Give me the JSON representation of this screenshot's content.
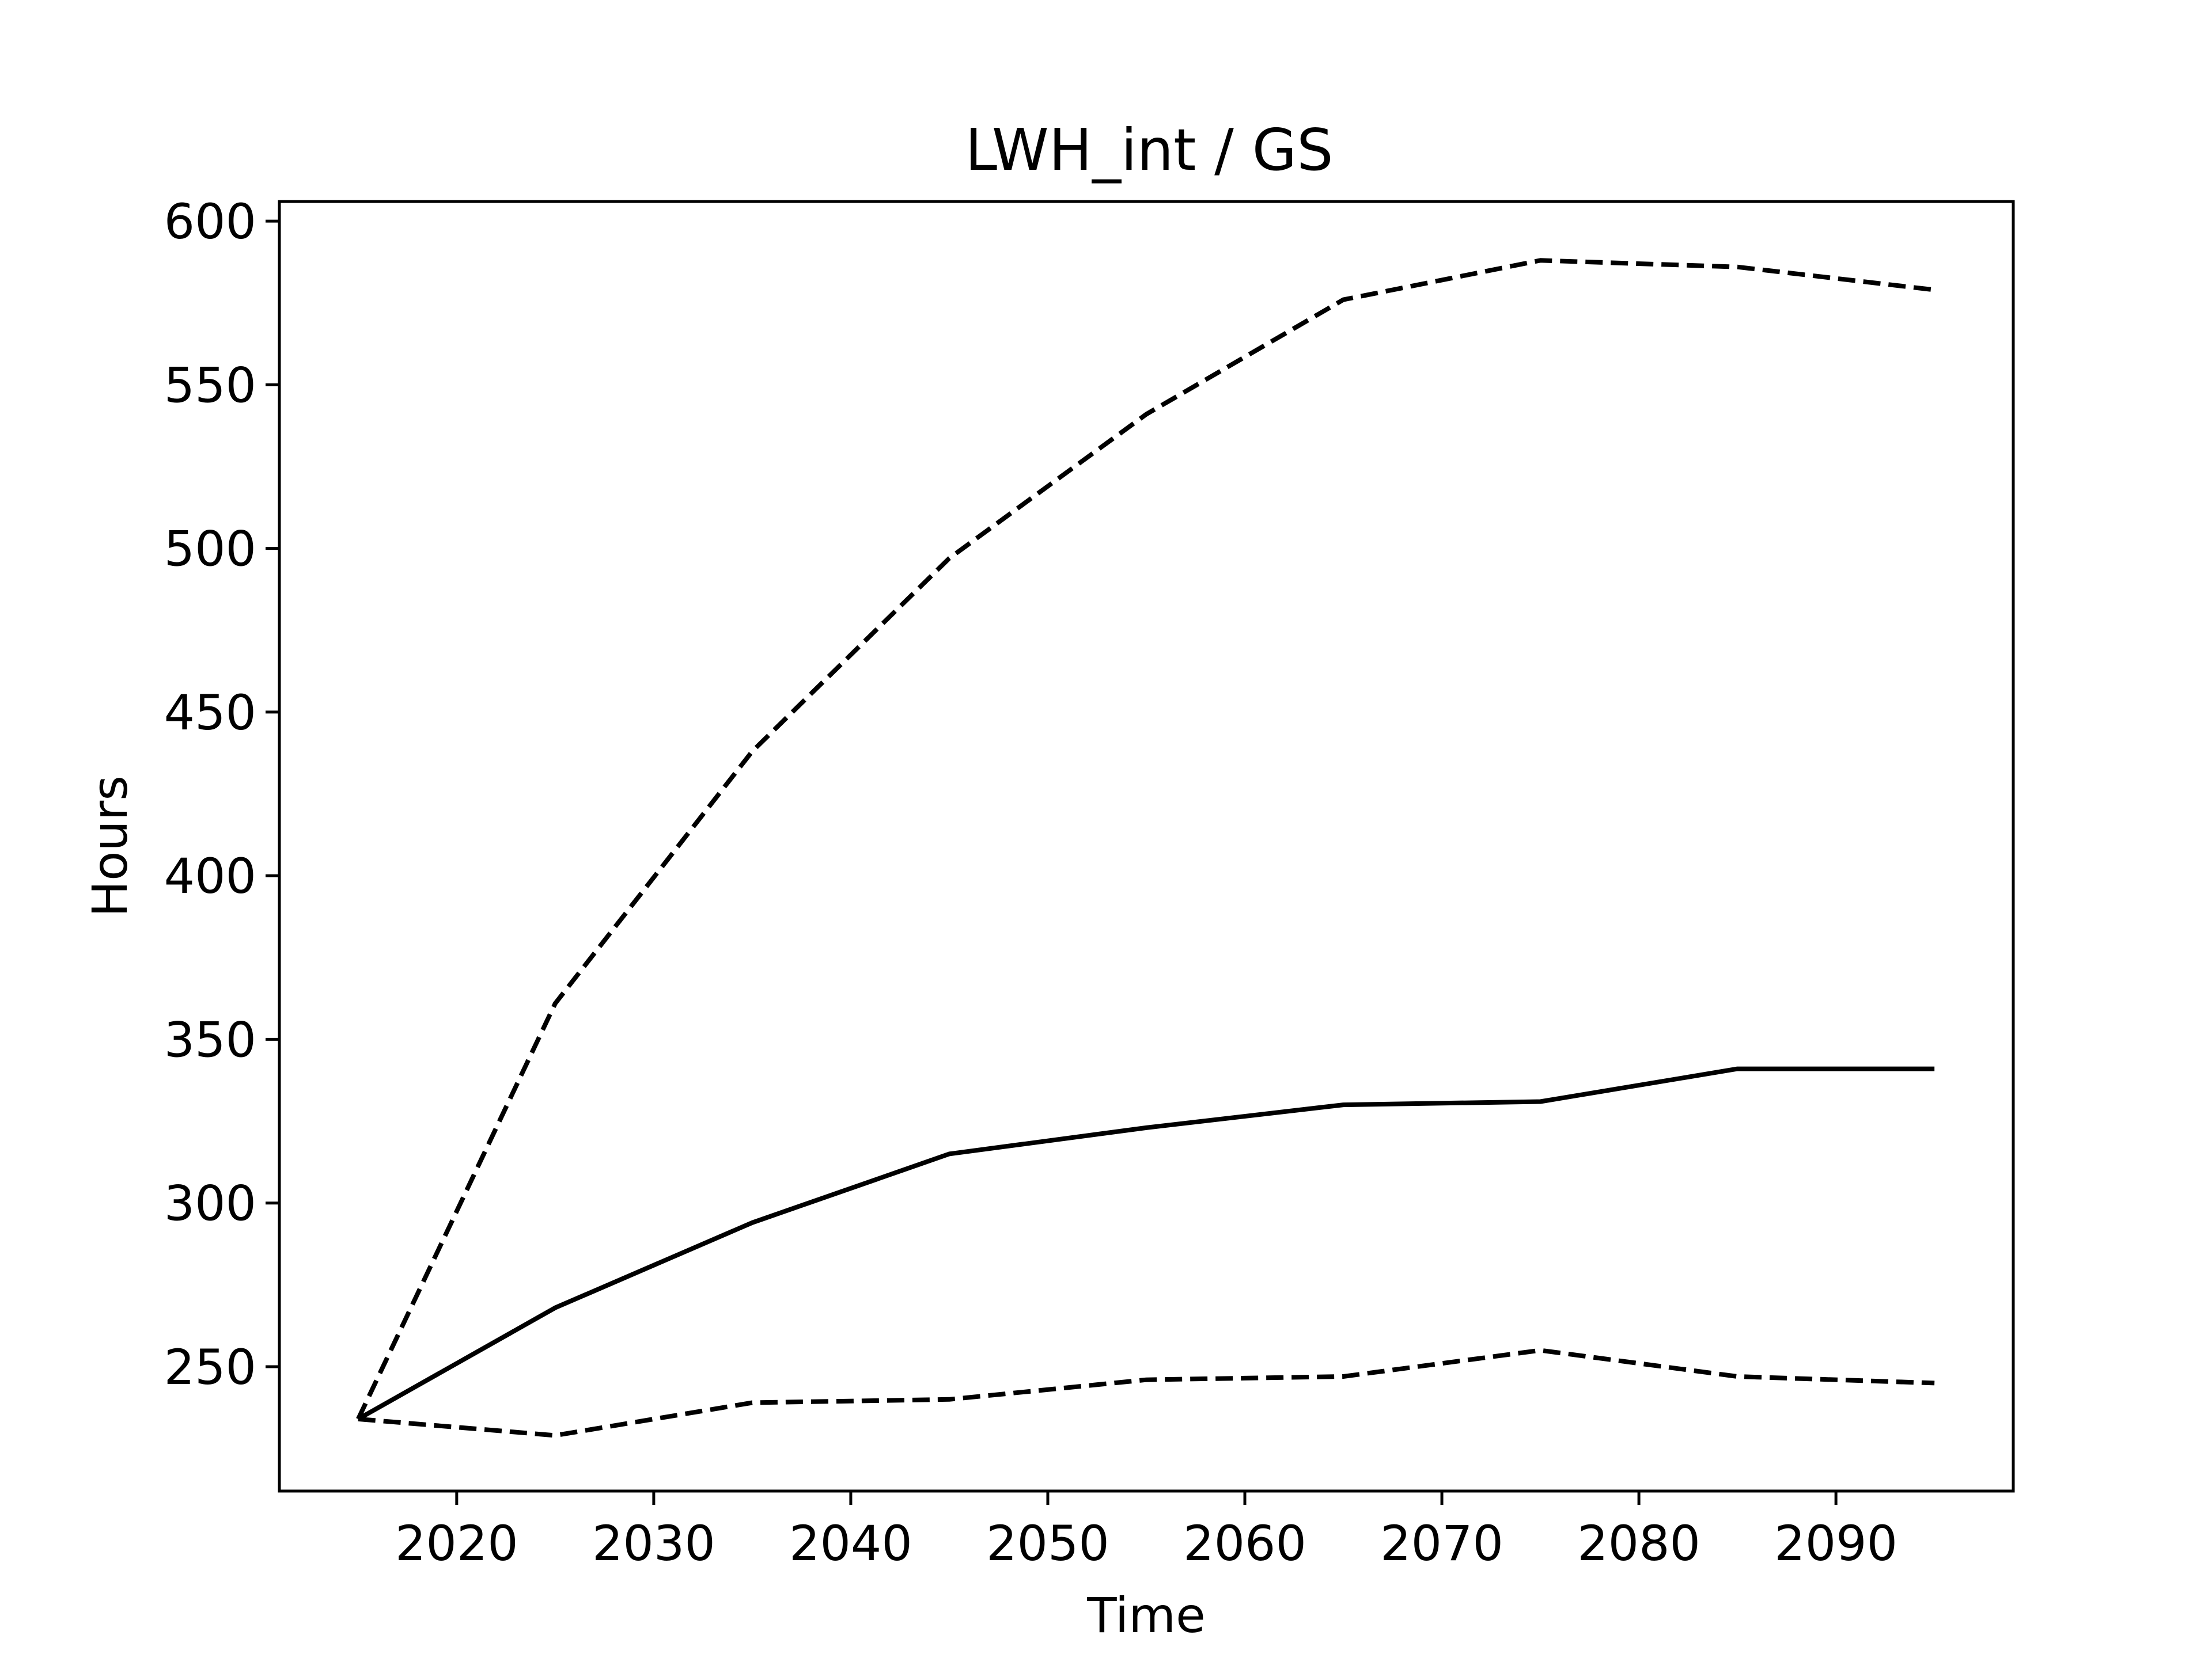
{
  "chart_data": {
    "type": "line",
    "title": "LWH_int / GS",
    "xlabel": "Time",
    "ylabel": "Hours",
    "xlim": [
      2011,
      2099
    ],
    "ylim": [
      212,
      606
    ],
    "x_ticks": [
      2020,
      2030,
      2040,
      2050,
      2060,
      2070,
      2080,
      2090
    ],
    "y_ticks": [
      250,
      300,
      350,
      400,
      450,
      500,
      550,
      600
    ],
    "grid": false,
    "x": [
      2015,
      2025,
      2035,
      2045,
      2055,
      2065,
      2075,
      2085,
      2095
    ],
    "series": [
      {
        "style": "dashed",
        "color": "#000000",
        "values": [
          234,
          361,
          438,
          497,
          541,
          576,
          588,
          586,
          579
        ]
      },
      {
        "style": "solid",
        "color": "#000000",
        "values": [
          234,
          268,
          294,
          315,
          323,
          330,
          331,
          341,
          341
        ]
      },
      {
        "style": "dashed",
        "color": "#000000",
        "values": [
          234,
          229,
          239,
          240,
          246,
          247,
          255,
          247,
          245
        ]
      }
    ]
  }
}
